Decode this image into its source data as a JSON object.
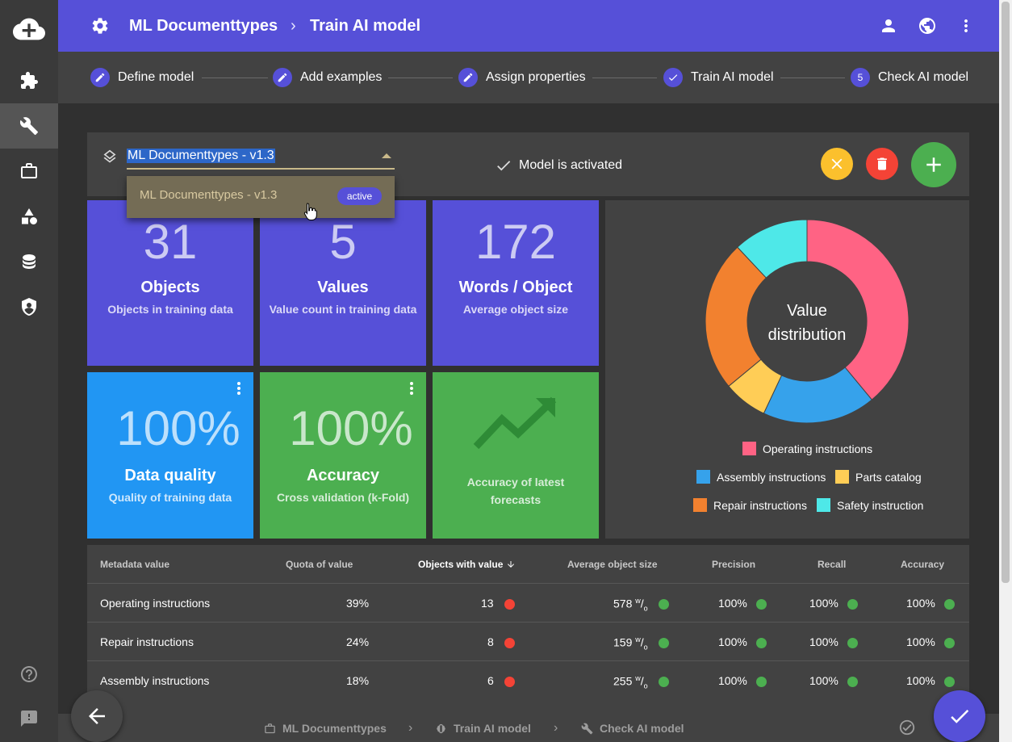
{
  "rail": {
    "items": [
      {
        "icon": "cloud-plus-icon"
      },
      {
        "icon": "puzzle-icon"
      },
      {
        "icon": "wrench-icon",
        "active": true
      },
      {
        "icon": "briefcase-icon"
      },
      {
        "icon": "shapes-icon"
      },
      {
        "icon": "database-icon"
      },
      {
        "icon": "shield-icon"
      },
      {
        "icon": "help-icon"
      },
      {
        "icon": "feedback-icon"
      }
    ]
  },
  "header": {
    "section": "ML Documenttypes",
    "page": "Train AI model",
    "separator": "›",
    "actions": [
      "person-icon",
      "globe-icon",
      "more-vert-icon"
    ]
  },
  "stepper": {
    "steps": [
      {
        "label": "Define model",
        "state": "edit"
      },
      {
        "label": "Add examples",
        "state": "edit"
      },
      {
        "label": "Assign properties",
        "state": "edit"
      },
      {
        "label": "Train AI model",
        "state": "done"
      },
      {
        "label": "Check AI model",
        "state": "current",
        "number": "5"
      }
    ]
  },
  "model": {
    "selected": "ML Documenttypes - v1.3",
    "status": "Model is activated",
    "dropdown": {
      "option": "ML Documenttypes - v1.3",
      "badge": "active"
    }
  },
  "tiles": [
    {
      "value": "31",
      "title": "Objects",
      "subtitle": "Objects in training data",
      "color": "#5650d8"
    },
    {
      "value": "5",
      "title": "Values",
      "subtitle": "Value count in training data",
      "color": "#5650d8"
    },
    {
      "value": "172",
      "title": "Words / Object",
      "subtitle": "Average object size",
      "color": "#5650d8"
    },
    {
      "value": "100%",
      "title": "Data quality",
      "subtitle": "Quality of training data",
      "color": "#2196f3"
    },
    {
      "value": "100%",
      "title": "Accuracy",
      "subtitle": "Cross validation (k-Fold)",
      "color": "#4caf50"
    },
    {
      "value": "",
      "title": "",
      "subtitle": "Accuracy of latest forecasts",
      "color": "#4caf50",
      "icon": "trending-up-icon"
    }
  ],
  "chart_data": {
    "type": "pie",
    "title": "Value distribution",
    "labels": [
      "Operating instructions",
      "Assembly instructions",
      "Parts catalog",
      "Repair instructions",
      "Safety instruction"
    ],
    "values": [
      39,
      18,
      7,
      24,
      12
    ],
    "colors": [
      "#ff6384",
      "#36a2eb",
      "#ffcd56",
      "#f2812f",
      "#4ee8e8"
    ],
    "legend": "bottom"
  },
  "table": {
    "headers": [
      "Metadata value",
      "Quota of value",
      "Objects with value",
      "Average object size",
      "Precision",
      "Recall",
      "Accuracy"
    ],
    "sorted_column": "Objects with value",
    "rows": [
      {
        "name": "Operating instructions",
        "quota": "39%",
        "objects": "13",
        "size": "578",
        "unit": "w/o",
        "precision": "100%",
        "recall": "100%",
        "accuracy": "100%"
      },
      {
        "name": "Repair instructions",
        "quota": "24%",
        "objects": "8",
        "size": "159",
        "unit": "w/o",
        "precision": "100%",
        "recall": "100%",
        "accuracy": "100%"
      },
      {
        "name": "Assembly instructions",
        "quota": "18%",
        "objects": "6",
        "size": "255",
        "unit": "w/o",
        "precision": "100%",
        "recall": "100%",
        "accuracy": "100%"
      }
    ]
  },
  "status_colors": {
    "bad": "#f44336",
    "good": "#4caf50"
  },
  "bottombar": {
    "crumbs": [
      "ML Documenttypes",
      "Train AI model",
      "Check AI model"
    ],
    "separator": "›"
  }
}
